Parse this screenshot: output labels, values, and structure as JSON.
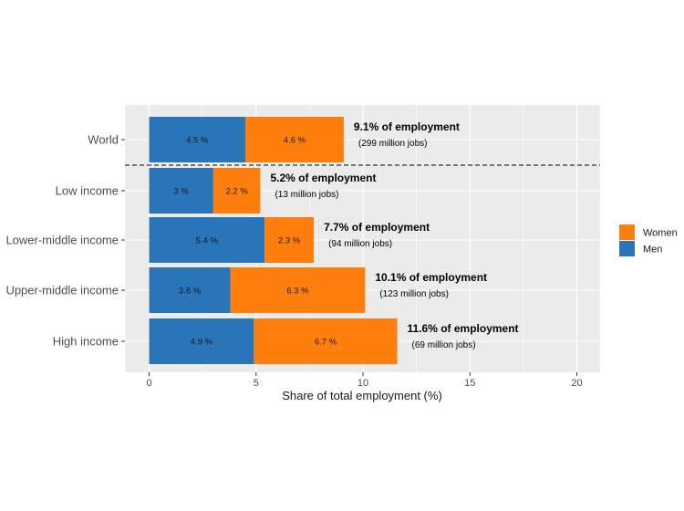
{
  "chart_data": {
    "type": "bar",
    "orientation": "horizontal",
    "stacked": true,
    "categories": [
      "World",
      "Low income",
      "Lower-middle income",
      "Upper-middle income",
      "High income"
    ],
    "series": [
      {
        "name": "Men",
        "color": "#2a74b8",
        "values": [
          4.5,
          3,
          5.4,
          3.8,
          4.9
        ],
        "labels": [
          "4.5 %",
          "3 %",
          "5.4 %",
          "3.8 %",
          "4.9 %"
        ]
      },
      {
        "name": "Women",
        "color": "#ff7f0e",
        "values": [
          4.6,
          2.2,
          2.3,
          6.3,
          6.7
        ],
        "labels": [
          "4.6 %",
          "2.2 %",
          "2.3 %",
          "6.3 %",
          "6.7 %"
        ]
      }
    ],
    "annotations": [
      {
        "total": "9.1% of employment",
        "jobs": "(299 million jobs)"
      },
      {
        "total": "5.2% of employment",
        "jobs": "(13 million jobs)"
      },
      {
        "total": "7.7% of employment",
        "jobs": "(94 million jobs)"
      },
      {
        "total": "10.1% of employment",
        "jobs": "(123 million jobs)"
      },
      {
        "total": "11.6% of employment",
        "jobs": "(69 million jobs)"
      }
    ],
    "xlabel": "Share of total employment (%)",
    "ylabel": "",
    "xlim": [
      -1,
      21
    ],
    "xticks": [
      0,
      5,
      10,
      15,
      20
    ],
    "legend": {
      "position": "right",
      "order": [
        "Women",
        "Men"
      ]
    },
    "separator_after": "World",
    "grid": true,
    "panel_color": "#ebebeb"
  }
}
